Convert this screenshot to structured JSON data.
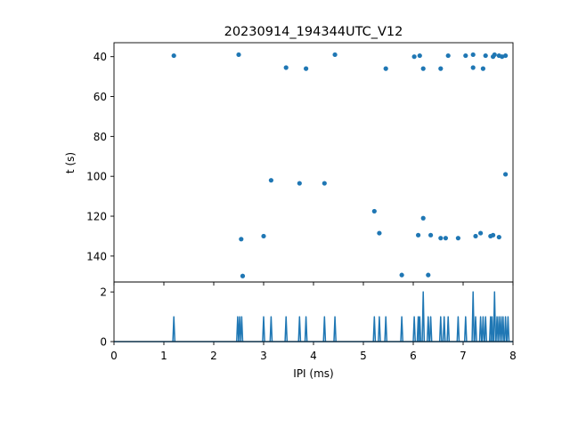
{
  "chart_data": [
    {
      "type": "scatter",
      "title": "20230914_194344UTC_V12",
      "xlabel": "",
      "ylabel": "t (s)",
      "xlim": [
        0,
        8
      ],
      "ylim": [
        153,
        33
      ],
      "y_inverted": true,
      "yticks": [
        40,
        60,
        80,
        100,
        120,
        140
      ],
      "x_ticklabels_shown": false,
      "color": "#1f77b4",
      "points": [
        [
          1.2,
          39.5
        ],
        [
          2.5,
          39
        ],
        [
          3.45,
          45.5
        ],
        [
          3.85,
          46
        ],
        [
          4.43,
          39
        ],
        [
          5.45,
          46
        ],
        [
          6.02,
          40
        ],
        [
          6.13,
          39.5
        ],
        [
          6.2,
          46
        ],
        [
          6.55,
          46
        ],
        [
          6.7,
          39.5
        ],
        [
          7.05,
          39.5
        ],
        [
          7.2,
          39
        ],
        [
          7.2,
          45.5
        ],
        [
          7.4,
          46
        ],
        [
          7.45,
          39.5
        ],
        [
          7.6,
          40
        ],
        [
          7.63,
          39
        ],
        [
          7.72,
          39.5
        ],
        [
          7.78,
          40
        ],
        [
          7.85,
          39.5
        ],
        [
          3.15,
          102
        ],
        [
          3.72,
          103.5
        ],
        [
          4.22,
          103.5
        ],
        [
          7.85,
          99
        ],
        [
          5.22,
          117.5
        ],
        [
          5.32,
          128.5
        ],
        [
          6.2,
          121
        ],
        [
          2.55,
          131.5
        ],
        [
          3.0,
          130
        ],
        [
          6.1,
          129.5
        ],
        [
          6.35,
          129.5
        ],
        [
          6.55,
          131
        ],
        [
          6.65,
          131
        ],
        [
          6.9,
          131
        ],
        [
          7.25,
          130
        ],
        [
          7.35,
          128.5
        ],
        [
          7.55,
          130
        ],
        [
          7.6,
          129.5
        ],
        [
          7.72,
          130.5
        ],
        [
          2.58,
          150
        ],
        [
          5.77,
          149.5
        ],
        [
          6.3,
          149.5
        ]
      ]
    },
    {
      "type": "line",
      "title": "",
      "xlabel": "IPI (ms)",
      "ylabel": "",
      "xlim": [
        0,
        8
      ],
      "ylim": [
        0,
        2.4
      ],
      "xticks": [
        0,
        1,
        2,
        3,
        4,
        5,
        6,
        7,
        8
      ],
      "yticks": [
        0,
        2
      ],
      "color": "#1f77b4",
      "spikes": [
        {
          "x": 1.2,
          "y": 1
        },
        {
          "x": 2.48,
          "y": 1
        },
        {
          "x": 2.52,
          "y": 1
        },
        {
          "x": 2.56,
          "y": 1
        },
        {
          "x": 3.0,
          "y": 1
        },
        {
          "x": 3.15,
          "y": 1
        },
        {
          "x": 3.45,
          "y": 1
        },
        {
          "x": 3.72,
          "y": 1
        },
        {
          "x": 3.85,
          "y": 1
        },
        {
          "x": 4.22,
          "y": 1
        },
        {
          "x": 4.43,
          "y": 1
        },
        {
          "x": 5.22,
          "y": 1
        },
        {
          "x": 5.32,
          "y": 1
        },
        {
          "x": 5.45,
          "y": 1
        },
        {
          "x": 5.77,
          "y": 1
        },
        {
          "x": 6.02,
          "y": 1
        },
        {
          "x": 6.1,
          "y": 1
        },
        {
          "x": 6.13,
          "y": 1
        },
        {
          "x": 6.2,
          "y": 2
        },
        {
          "x": 6.3,
          "y": 1
        },
        {
          "x": 6.35,
          "y": 1
        },
        {
          "x": 6.55,
          "y": 1
        },
        {
          "x": 6.62,
          "y": 1
        },
        {
          "x": 6.7,
          "y": 1
        },
        {
          "x": 6.9,
          "y": 1
        },
        {
          "x": 7.05,
          "y": 1
        },
        {
          "x": 7.2,
          "y": 2
        },
        {
          "x": 7.25,
          "y": 1
        },
        {
          "x": 7.35,
          "y": 1
        },
        {
          "x": 7.4,
          "y": 1
        },
        {
          "x": 7.45,
          "y": 1
        },
        {
          "x": 7.55,
          "y": 1
        },
        {
          "x": 7.58,
          "y": 1
        },
        {
          "x": 7.63,
          "y": 2
        },
        {
          "x": 7.68,
          "y": 1
        },
        {
          "x": 7.72,
          "y": 1
        },
        {
          "x": 7.76,
          "y": 1
        },
        {
          "x": 7.8,
          "y": 1
        },
        {
          "x": 7.85,
          "y": 1
        },
        {
          "x": 7.9,
          "y": 1
        }
      ]
    }
  ]
}
